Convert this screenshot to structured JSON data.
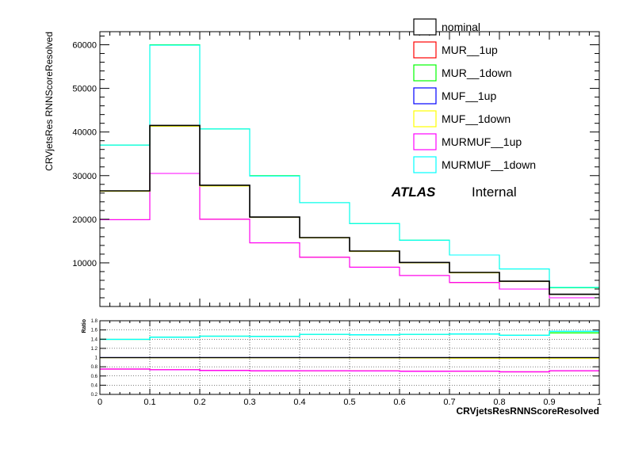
{
  "chart_data": {
    "type": "histogram",
    "xlabel": "CRVjetsResRNNScoreResolved",
    "ylabel": "CRVjetsRes RNNScoreResolved",
    "ratio_ylabel": "Ratio",
    "annotation": {
      "atlas": "ATLAS",
      "status": "Internal"
    },
    "bin_edges": [
      0,
      0.1,
      0.2,
      0.3,
      0.4,
      0.5,
      0.6,
      0.7,
      0.8,
      0.9,
      1.0
    ],
    "x_ticks": [
      "0",
      "0.1",
      "0.2",
      "0.3",
      "0.4",
      "0.5",
      "0.6",
      "0.7",
      "0.8",
      "0.9",
      "1"
    ],
    "y_ticks": [
      10000,
      20000,
      30000,
      40000,
      50000,
      60000
    ],
    "ylim": [
      0,
      63000
    ],
    "ratio_ticks": [
      0.2,
      0.4,
      0.6,
      0.8,
      1,
      1.2,
      1.4,
      1.6,
      1.8
    ],
    "ratio_ylim": [
      0.2,
      1.8
    ],
    "series": [
      {
        "name": "nominal",
        "color": "#000000",
        "values": [
          26500,
          41500,
          27800,
          20500,
          15800,
          12700,
          10100,
          7800,
          5800,
          2800
        ]
      },
      {
        "name": "MUR__1up",
        "color": "#ff0000",
        "values": [
          19900,
          30500,
          20000,
          14600,
          11300,
          9000,
          7100,
          5500,
          4000,
          2000
        ]
      },
      {
        "name": "MUR__1down",
        "color": "#00ff00",
        "values": [
          37000,
          60000,
          40700,
          30000,
          23800,
          19000,
          15200,
          11800,
          8600,
          4300
        ]
      },
      {
        "name": "MUF__1up",
        "color": "#0000ff",
        "values": [
          26500,
          41500,
          27800,
          20500,
          15800,
          12700,
          10100,
          7800,
          5800,
          2800
        ]
      },
      {
        "name": "MUF__1down",
        "color": "#ffff00",
        "values": [
          26400,
          41300,
          27600,
          20400,
          15700,
          12600,
          10000,
          7700,
          5700,
          2750
        ]
      },
      {
        "name": "MURMUF__1up",
        "color": "#ff00ff",
        "values": [
          19900,
          30500,
          20000,
          14600,
          11300,
          9000,
          7100,
          5500,
          4000,
          2000
        ]
      },
      {
        "name": "MURMUF__1down",
        "color": "#00ffff",
        "values": [
          37000,
          59900,
          40700,
          29900,
          23800,
          19000,
          15200,
          11800,
          8600,
          4400
        ]
      }
    ],
    "ratios": [
      {
        "name": "MUR__1up",
        "color": "#ff0000",
        "values": [
          0.75,
          0.735,
          0.72,
          0.712,
          0.715,
          0.71,
          0.703,
          0.705,
          0.69,
          0.714
        ]
      },
      {
        "name": "MUR__1down",
        "color": "#00ff00",
        "values": [
          1.396,
          1.446,
          1.464,
          1.463,
          1.506,
          1.496,
          1.505,
          1.513,
          1.483,
          1.536
        ]
      },
      {
        "name": "MUF__1up",
        "color": "#0000ff",
        "values": [
          1.0,
          1.0,
          1.0,
          1.0,
          1.0,
          1.0,
          1.0,
          1.0,
          1.0,
          1.0
        ]
      },
      {
        "name": "MUF__1down",
        "color": "#ffff00",
        "values": [
          0.996,
          0.995,
          0.993,
          0.995,
          0.994,
          0.992,
          0.99,
          0.987,
          0.983,
          0.982
        ]
      },
      {
        "name": "MURMUF__1up",
        "color": "#ff00ff",
        "values": [
          0.75,
          0.735,
          0.72,
          0.712,
          0.715,
          0.709,
          0.703,
          0.705,
          0.69,
          0.714
        ]
      },
      {
        "name": "MURMUF__1down",
        "color": "#00ffff",
        "values": [
          1.396,
          1.443,
          1.464,
          1.459,
          1.506,
          1.496,
          1.505,
          1.513,
          1.483,
          1.571
        ]
      }
    ]
  }
}
